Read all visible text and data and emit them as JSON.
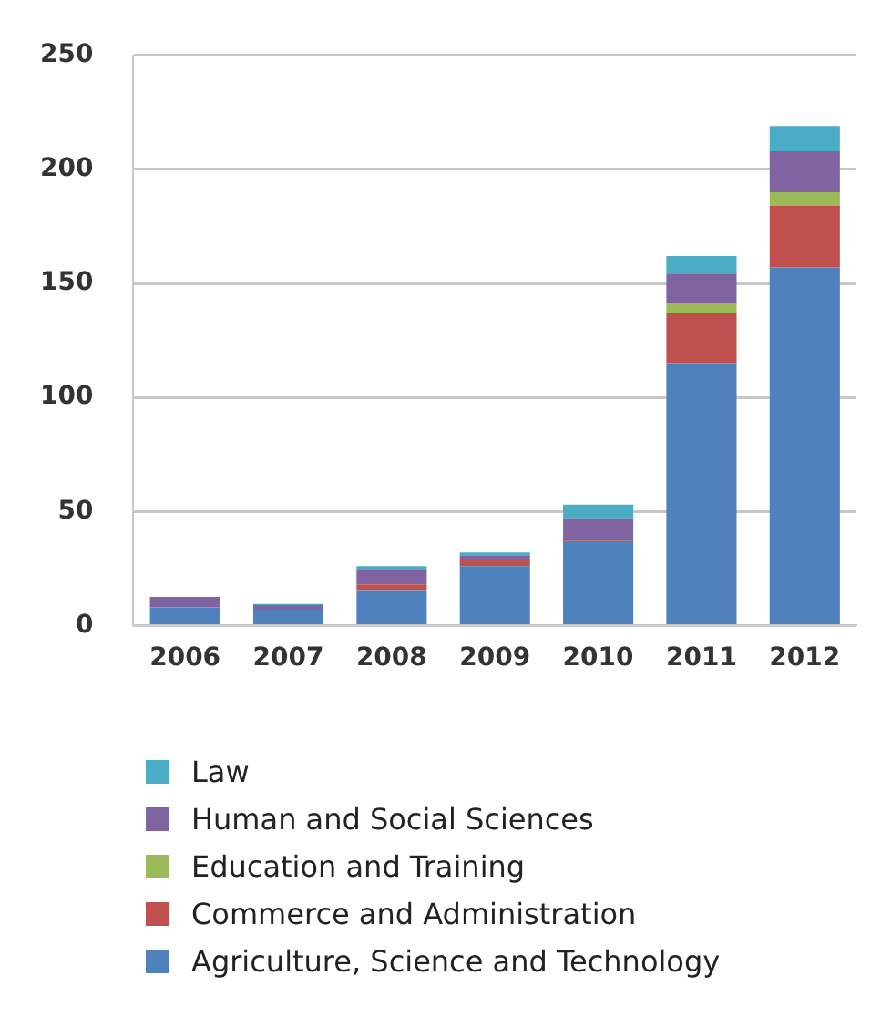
{
  "chart_data": {
    "type": "bar",
    "stacked": true,
    "categories": [
      "2006",
      "2007",
      "2008",
      "2009",
      "2010",
      "2011",
      "2012"
    ],
    "series": [
      {
        "name": "Agriculture, Science and Technology",
        "color": "#4f81bd",
        "values": [
          8,
          7,
          15.5,
          26,
          37,
          115,
          157
        ]
      },
      {
        "name": "Commerce and Administration",
        "color": "#c0504d",
        "values": [
          0,
          0,
          2.5,
          2.5,
          1,
          22,
          27
        ]
      },
      {
        "name": "Education and Training",
        "color": "#9bbb59",
        "values": [
          0,
          0,
          0,
          0,
          0,
          4.5,
          6
        ]
      },
      {
        "name": "Human and Social Sciences",
        "color": "#8064a2",
        "values": [
          4.5,
          2,
          6.5,
          2,
          9,
          12.5,
          18
        ]
      },
      {
        "name": "Law",
        "color": "#4bacc6",
        "values": [
          0,
          0.5,
          1.5,
          1.5,
          6,
          8,
          11
        ]
      }
    ],
    "ylim": [
      0,
      250
    ],
    "yticks": [
      0,
      50,
      100,
      150,
      200,
      250
    ],
    "grid": "y",
    "legend": "bottom"
  }
}
